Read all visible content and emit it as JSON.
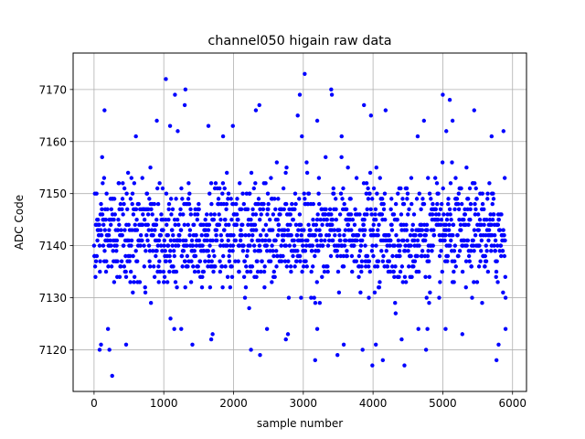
{
  "chart_data": {
    "type": "scatter",
    "title": "channel050 higain raw data",
    "xlabel": "sample number",
    "ylabel": "ADC Code",
    "xlim": [
      -300,
      6200
    ],
    "ylim": [
      7112,
      7177
    ],
    "x_ticks": [
      0,
      1000,
      2000,
      3000,
      4000,
      5000,
      6000
    ],
    "y_ticks": [
      7120,
      7130,
      7140,
      7150,
      7160,
      7170
    ],
    "x_tick_labels": [
      "0",
      "1000",
      "2000",
      "3000",
      "4000",
      "5000",
      "6000"
    ],
    "y_tick_labels": [
      "7120",
      "7130",
      "7140",
      "7150",
      "7160",
      "7170"
    ],
    "grid": true,
    "marker_color": "#0000ff",
    "series": [
      {
        "sample_count": 5900,
        "x_range": [
          0,
          5900
        ],
        "center": 7142,
        "typical_spread": 5,
        "points": [
          [
            1030,
            7172
          ],
          [
            3020,
            7173
          ],
          [
            1310,
            7170
          ],
          [
            3400,
            7170
          ],
          [
            3410,
            7169
          ],
          [
            1160,
            7169
          ],
          [
            2950,
            7169
          ],
          [
            5000,
            7169
          ],
          [
            1300,
            7167
          ],
          [
            2370,
            7167
          ],
          [
            3870,
            7167
          ],
          [
            4180,
            7166
          ],
          [
            150,
            7166
          ],
          [
            2320,
            7166
          ],
          [
            5450,
            7166
          ],
          [
            5100,
            7168
          ],
          [
            3970,
            7165
          ],
          [
            2920,
            7165
          ],
          [
            3200,
            7164
          ],
          [
            900,
            7164
          ],
          [
            1090,
            7163
          ],
          [
            5140,
            7164
          ],
          [
            4730,
            7164
          ],
          [
            1640,
            7163
          ],
          [
            1990,
            7163
          ],
          [
            5870,
            7162
          ],
          [
            1200,
            7162
          ],
          [
            5050,
            7162
          ],
          [
            2980,
            7161
          ],
          [
            3550,
            7161
          ],
          [
            600,
            7161
          ],
          [
            1850,
            7161
          ],
          [
            4640,
            7161
          ],
          [
            5700,
            7161
          ],
          [
            260,
            7115
          ],
          [
            3170,
            7118
          ],
          [
            4450,
            7117
          ],
          [
            3990,
            7117
          ],
          [
            5770,
            7118
          ],
          [
            4140,
            7118
          ],
          [
            2380,
            7119
          ],
          [
            3490,
            7119
          ],
          [
            80,
            7120
          ],
          [
            220,
            7120
          ],
          [
            2250,
            7120
          ],
          [
            3850,
            7120
          ],
          [
            4760,
            7120
          ],
          [
            100,
            7121
          ],
          [
            1410,
            7121
          ],
          [
            3580,
            7121
          ],
          [
            5800,
            7121
          ],
          [
            4040,
            7121
          ],
          [
            460,
            7121
          ],
          [
            1680,
            7122
          ],
          [
            2750,
            7122
          ],
          [
            4410,
            7122
          ],
          [
            5280,
            7123
          ],
          [
            1700,
            7123
          ],
          [
            2780,
            7123
          ],
          [
            5900,
            7124
          ],
          [
            200,
            7124
          ],
          [
            1150,
            7124
          ],
          [
            1250,
            7124
          ],
          [
            3200,
            7124
          ],
          [
            4780,
            7124
          ],
          [
            5040,
            7124
          ],
          [
            4650,
            7124
          ],
          [
            2480,
            7124
          ]
        ]
      }
    ]
  }
}
